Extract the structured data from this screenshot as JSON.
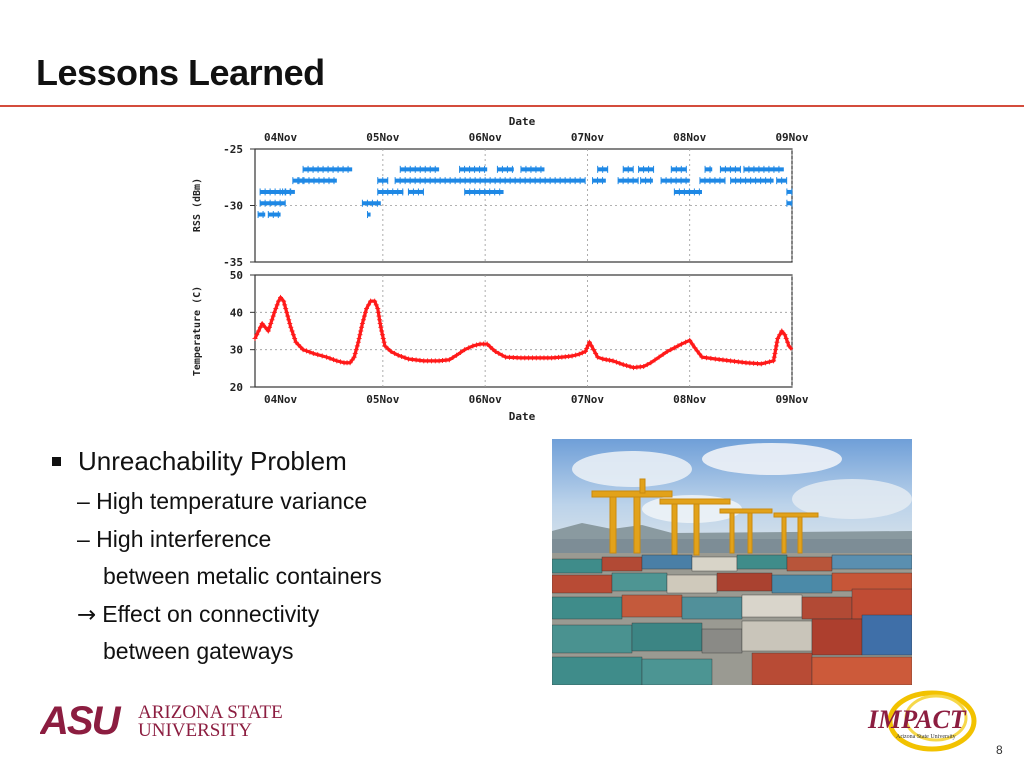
{
  "slide": {
    "title": "Lessons Learned",
    "page_number": "8"
  },
  "bullets": {
    "main": "Unreachability Problem",
    "sub1": "– High temperature variance",
    "sub2": "– High interference",
    "sub2_cont": "between metalic containers",
    "sub3_arrow": "→",
    "sub3": "Effect on connectivity",
    "sub3_cont": "between gateways"
  },
  "footer": {
    "asu_logo_text": "ASU",
    "asu_name_line1": "ARIZONA STATE",
    "asu_name_line2": "UNIVERSITY",
    "impact_logo_text": "IMPACT",
    "impact_sub": "Arizona State University"
  },
  "colors": {
    "rule": "#d44c3c",
    "rss_series": "#1e88e5",
    "temp_series": "#ff1a1a",
    "asu_maroon": "#8c1d40",
    "impact_gold": "#f2c200"
  },
  "chart_data": [
    {
      "type": "scatter",
      "title": "Date",
      "xlabel": "Date",
      "ylabel": "RSS (dBm)",
      "x_ticks": [
        "04Nov",
        "05Nov",
        "06Nov",
        "07Nov",
        "08Nov",
        "09Nov"
      ],
      "xlim": [
        -0.25,
        5.0
      ],
      "ylim": [
        -35,
        -25
      ],
      "y_ticks": [
        -25,
        -30,
        -35
      ],
      "grid": true,
      "series": [
        {
          "levels": [
            -26.8,
            -27.8,
            -28.8,
            -29.8,
            -30.8
          ],
          "segments": [
            {
              "y": -26.8,
              "x": [
                [
                  0.22,
                  0.7
                ],
                [
                  1.17,
                  1.55
                ],
                [
                  1.75,
                  2.02
                ],
                [
                  2.12,
                  2.28
                ],
                [
                  2.35,
                  2.58
                ],
                [
                  3.1,
                  3.2
                ],
                [
                  3.35,
                  3.45
                ],
                [
                  3.5,
                  3.65
                ],
                [
                  3.82,
                  3.97
                ],
                [
                  4.15,
                  4.22
                ],
                [
                  4.3,
                  4.5
                ],
                [
                  4.53,
                  4.92
                ]
              ]
            },
            {
              "y": -27.8,
              "x": [
                [
                  0.12,
                  0.24
                ],
                [
                  0.18,
                  0.55
                ],
                [
                  0.95,
                  1.05
                ],
                [
                  1.12,
                  2.98
                ],
                [
                  3.05,
                  3.18
                ],
                [
                  3.3,
                  3.5
                ],
                [
                  3.52,
                  3.64
                ],
                [
                  3.72,
                  4.0
                ],
                [
                  4.1,
                  4.35
                ],
                [
                  4.4,
                  4.82
                ],
                [
                  4.85,
                  4.95
                ]
              ]
            },
            {
              "y": -28.8,
              "x": [
                [
                  -0.2,
                  0.1
                ],
                [
                  0.02,
                  0.05
                ],
                [
                  0.05,
                  0.14
                ],
                [
                  0.95,
                  1.2
                ],
                [
                  1.25,
                  1.4
                ],
                [
                  1.8,
                  2.18
                ],
                [
                  3.85,
                  4.12
                ],
                [
                  4.95,
                  5.0
                ]
              ]
            },
            {
              "y": -29.8,
              "x": [
                [
                  -0.2,
                  0.05
                ],
                [
                  0.8,
                  0.98
                ],
                [
                  4.95,
                  5.0
                ]
              ]
            },
            {
              "y": -30.8,
              "x": [
                [
                  -0.22,
                  -0.15
                ],
                [
                  -0.12,
                  0.0
                ],
                [
                  0.85,
                  0.88
                ]
              ]
            }
          ]
        }
      ]
    },
    {
      "type": "line",
      "xlabel": "Date",
      "ylabel": "Temperature (C)",
      "x_ticks": [
        "04Nov",
        "05Nov",
        "06Nov",
        "07Nov",
        "08Nov",
        "09Nov"
      ],
      "xlim": [
        -0.25,
        5.0
      ],
      "ylim": [
        20,
        50
      ],
      "y_ticks": [
        20,
        30,
        40,
        50
      ],
      "grid": true,
      "series": [
        {
          "name": "",
          "x": [
            -0.25,
            -0.18,
            -0.12,
            -0.06,
            -0.02,
            0.0,
            0.03,
            0.06,
            0.1,
            0.15,
            0.22,
            0.32,
            0.45,
            0.55,
            0.62,
            0.68,
            0.72,
            0.76,
            0.8,
            0.84,
            0.88,
            0.92,
            0.95,
            0.98,
            1.02,
            1.08,
            1.15,
            1.25,
            1.4,
            1.55,
            1.65,
            1.72,
            1.8,
            1.88,
            1.95,
            2.02,
            2.1,
            2.2,
            2.35,
            2.5,
            2.65,
            2.75,
            2.85,
            2.92,
            2.98,
            3.02,
            3.06,
            3.1,
            3.15,
            3.25,
            3.35,
            3.45,
            3.55,
            3.62,
            3.7,
            3.78,
            3.85,
            3.92,
            4.0,
            4.05,
            4.12,
            4.25,
            4.4,
            4.55,
            4.7,
            4.82,
            4.86,
            4.9,
            4.93,
            4.97,
            5.0
          ],
          "y": [
            33,
            37,
            35,
            40,
            43,
            44,
            43,
            40,
            36,
            32,
            30,
            29,
            28,
            27,
            26.5,
            26.5,
            28,
            32,
            37,
            41,
            43,
            43,
            41,
            36,
            31,
            29.5,
            28.5,
            27.5,
            27,
            27,
            27.3,
            28.5,
            30,
            31,
            31.5,
            31.5,
            29.5,
            28,
            27.8,
            27.8,
            27.8,
            28,
            28.3,
            28.8,
            29.5,
            32,
            30,
            28,
            27.5,
            27,
            26,
            25.2,
            25.5,
            26.5,
            28,
            29.5,
            30.5,
            31.5,
            32.5,
            30.5,
            28,
            27.5,
            27,
            26.5,
            26.2,
            27,
            33,
            35,
            34,
            31,
            30
          ]
        }
      ]
    }
  ]
}
